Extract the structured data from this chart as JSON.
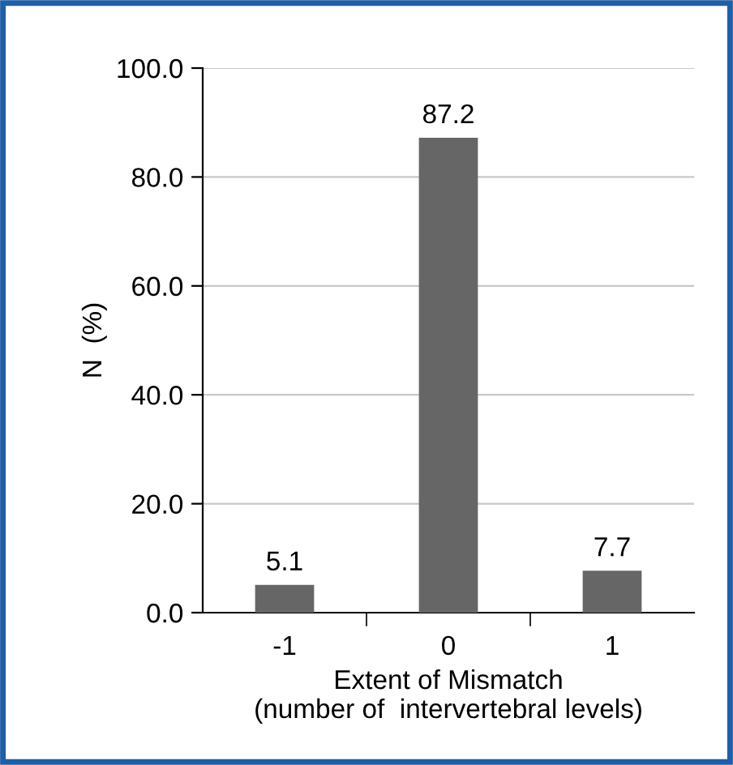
{
  "chart_data": {
    "type": "bar",
    "categories": [
      "-1",
      "0",
      "1"
    ],
    "values": [
      5.1,
      87.2,
      7.7
    ],
    "color": "#666666",
    "data_labels": true,
    "xlabel": "Extent of Mismatch\n(number of  intervertebral levels)",
    "ylabel": "N  (%)",
    "ylim": [
      0,
      100
    ],
    "yticks": [
      {
        "value": 0,
        "label": "0.0"
      },
      {
        "value": 20,
        "label": "20.0"
      },
      {
        "value": 40,
        "label": "40.0"
      },
      {
        "value": 60,
        "label": "60.0"
      },
      {
        "value": 80,
        "label": "80.0"
      },
      {
        "value": 100,
        "label": "100.0"
      }
    ],
    "grid": "y"
  }
}
